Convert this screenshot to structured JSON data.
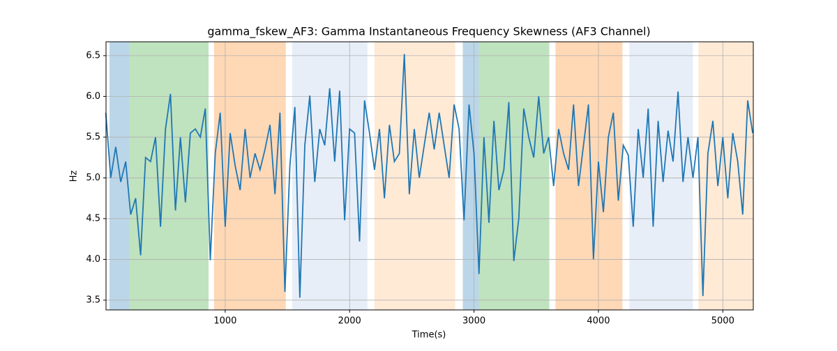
{
  "chart_data": {
    "type": "line",
    "title": "gamma_fskew_AF3: Gamma Instantaneous Frequency Skewness (AF3 Channel)",
    "xlabel": "Time(s)",
    "ylabel": "Hz",
    "xlim": [
      42,
      5245
    ],
    "ylim": [
      3.38,
      6.67
    ],
    "xticks": [
      1000,
      2000,
      3000,
      4000,
      5000
    ],
    "yticks": [
      3.5,
      {
        "value": 4,
        "label": "4.0"
      },
      4.5,
      {
        "value": 5,
        "label": "5.0"
      },
      5.5,
      {
        "value": 6,
        "label": "6.0"
      },
      6.5
    ],
    "grid": true,
    "span_alpha": 0.3,
    "spans": [
      {
        "start": 70,
        "end": 227,
        "color": "#1f77b4"
      },
      {
        "start": 227,
        "end": 866,
        "color": "#2ca02c"
      },
      {
        "start": 910,
        "end": 1487,
        "color": "#ff7f0e"
      },
      {
        "start": 1538,
        "end": 2143,
        "color": "#aec7e8"
      },
      {
        "start": 2199,
        "end": 2849,
        "color": "#ffbb78"
      },
      {
        "start": 2910,
        "end": 3039,
        "color": "#1f77b4"
      },
      {
        "start": 3039,
        "end": 3605,
        "color": "#2ca02c"
      },
      {
        "start": 3655,
        "end": 4193,
        "color": "#ff7f0e"
      },
      {
        "start": 4249,
        "end": 4759,
        "color": "#aec7e8"
      },
      {
        "start": 4804,
        "end": 5245,
        "color": "#ffbb78"
      }
    ],
    "x": [
      40,
      80,
      120,
      160,
      200,
      240,
      280,
      320,
      360,
      400,
      440,
      480,
      520,
      560,
      600,
      640,
      680,
      720,
      760,
      800,
      840,
      880,
      920,
      960,
      1000,
      1040,
      1080,
      1120,
      1160,
      1200,
      1240,
      1280,
      1320,
      1360,
      1400,
      1440,
      1480,
      1520,
      1560,
      1600,
      1640,
      1680,
      1720,
      1760,
      1800,
      1840,
      1880,
      1920,
      1960,
      2000,
      2040,
      2080,
      2120,
      2160,
      2200,
      2240,
      2280,
      2320,
      2360,
      2400,
      2440,
      2480,
      2520,
      2560,
      2600,
      2640,
      2680,
      2720,
      2760,
      2800,
      2840,
      2880,
      2920,
      2960,
      3000,
      3040,
      3080,
      3120,
      3160,
      3200,
      3240,
      3280,
      3320,
      3360,
      3400,
      3440,
      3480,
      3520,
      3560,
      3600,
      3640,
      3680,
      3720,
      3760,
      3800,
      3840,
      3880,
      3920,
      3960,
      4000,
      4040,
      4080,
      4120,
      4160,
      4200,
      4240,
      4280,
      4320,
      4360,
      4400,
      4440,
      4480,
      4520,
      4560,
      4600,
      4640,
      4680,
      4720,
      4760,
      4800,
      4840,
      4880,
      4920,
      4960,
      5000,
      5040,
      5080,
      5120,
      5160,
      5200,
      5240
    ],
    "series": [
      {
        "color": "#1f77b4",
        "values": [
          5.8,
          5.0,
          5.38,
          4.95,
          5.2,
          4.55,
          4.75,
          4.05,
          5.25,
          5.2,
          5.5,
          4.4,
          5.6,
          6.03,
          4.6,
          5.5,
          4.7,
          5.55,
          5.6,
          5.5,
          5.85,
          3.99,
          5.3,
          5.8,
          4.4,
          5.55,
          5.15,
          4.85,
          5.6,
          5.0,
          5.3,
          5.1,
          5.35,
          5.65,
          4.8,
          5.8,
          3.6,
          5.15,
          5.87,
          3.53,
          5.4,
          6.01,
          4.95,
          5.6,
          5.4,
          6.1,
          5.2,
          6.07,
          4.48,
          5.6,
          5.55,
          4.22,
          5.95,
          5.55,
          5.1,
          5.6,
          4.75,
          5.65,
          5.2,
          5.3,
          6.52,
          4.8,
          5.6,
          5.0,
          5.4,
          5.8,
          5.35,
          5.8,
          5.4,
          5.0,
          5.9,
          5.6,
          4.48,
          5.9,
          5.3,
          3.82,
          5.5,
          4.45,
          5.7,
          4.85,
          5.1,
          5.93,
          3.98,
          4.5,
          5.85,
          5.5,
          5.25,
          6.0,
          5.3,
          5.5,
          4.9,
          5.6,
          5.3,
          5.1,
          5.9,
          4.9,
          5.4,
          5.9,
          4.0,
          5.2,
          4.58,
          5.5,
          5.8,
          4.72,
          5.4,
          5.28,
          4.4,
          5.6,
          5.0,
          5.85,
          4.4,
          5.7,
          4.95,
          5.58,
          5.2,
          6.06,
          4.95,
          5.5,
          5.0,
          5.5,
          3.55,
          5.3,
          5.7,
          4.9,
          5.5,
          4.75,
          5.55,
          5.2,
          4.55,
          5.95,
          5.55
        ]
      }
    ]
  }
}
